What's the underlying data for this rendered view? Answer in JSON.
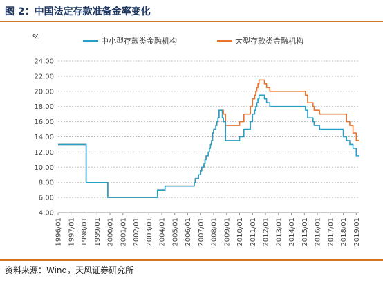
{
  "header": {
    "title": "图 2：中国法定存款准备金率变化"
  },
  "footer": {
    "source": "资料来源：Wind，天风证券研究所"
  },
  "colors": {
    "accent": "#d5761f",
    "series_small": "#26a0c8",
    "series_large": "#e8722c"
  },
  "chart_data": {
    "type": "line",
    "title": "",
    "xlabel": "",
    "ylabel": "%",
    "ylim": [
      4,
      24
    ],
    "xlim": [
      "1996-01",
      "2019-04"
    ],
    "grid": true,
    "legend_position": "top-right",
    "y_ticks": [
      "4.00",
      "6.00",
      "8.00",
      "10.00",
      "12.00",
      "14.00",
      "16.00",
      "18.00",
      "20.00",
      "22.00",
      "24.00"
    ],
    "x_ticks": [
      "1996/01",
      "1997/01",
      "1998/01",
      "1999/01",
      "2000/01",
      "2001/01",
      "2002/01",
      "2003/01",
      "2004/01",
      "2005/01",
      "2006/01",
      "2007/01",
      "2008/01",
      "2009/01",
      "2010/01",
      "2011/01",
      "2012/01",
      "2013/01",
      "2014/01",
      "2015/01",
      "2016/01",
      "2017/01",
      "2018/01",
      "2019/01"
    ],
    "series": [
      {
        "name": "中小型存款类金融机构",
        "color": "#26a0c8",
        "points": [
          [
            "1996-01",
            13
          ],
          [
            "1998-03",
            13
          ],
          [
            "1998-03",
            8
          ],
          [
            "1999-11",
            8
          ],
          [
            "1999-11",
            6
          ],
          [
            "2003-09",
            6
          ],
          [
            "2003-09",
            7
          ],
          [
            "2004-04",
            7
          ],
          [
            "2004-04",
            7.5
          ],
          [
            "2006-07",
            7.5
          ],
          [
            "2006-07",
            8
          ],
          [
            "2006-08",
            8
          ],
          [
            "2006-08",
            8.5
          ],
          [
            "2006-11",
            8.5
          ],
          [
            "2006-11",
            9
          ],
          [
            "2007-01",
            9
          ],
          [
            "2007-01",
            9.5
          ],
          [
            "2007-02",
            9.5
          ],
          [
            "2007-02",
            10
          ],
          [
            "2007-04",
            10
          ],
          [
            "2007-04",
            10.5
          ],
          [
            "2007-05",
            10.5
          ],
          [
            "2007-05",
            11
          ],
          [
            "2007-06",
            11
          ],
          [
            "2007-06",
            11.5
          ],
          [
            "2007-08",
            11.5
          ],
          [
            "2007-08",
            12
          ],
          [
            "2007-09",
            12
          ],
          [
            "2007-09",
            12.5
          ],
          [
            "2007-10",
            12.5
          ],
          [
            "2007-10",
            13
          ],
          [
            "2007-11",
            13
          ],
          [
            "2007-11",
            13.5
          ],
          [
            "2007-12",
            13.5
          ],
          [
            "2007-12",
            14.5
          ],
          [
            "2008-01",
            14.5
          ],
          [
            "2008-01",
            15
          ],
          [
            "2008-03",
            15
          ],
          [
            "2008-03",
            15.5
          ],
          [
            "2008-04",
            15.5
          ],
          [
            "2008-04",
            16
          ],
          [
            "2008-05",
            16
          ],
          [
            "2008-05",
            16.5
          ],
          [
            "2008-06",
            16.5
          ],
          [
            "2008-06",
            17.5
          ],
          [
            "2008-09",
            17.5
          ],
          [
            "2008-09",
            16.5
          ],
          [
            "2008-10",
            16.5
          ],
          [
            "2008-10",
            16
          ],
          [
            "2008-12",
            16
          ],
          [
            "2008-12",
            13.5
          ],
          [
            "2010-01",
            13.5
          ],
          [
            "2010-01",
            14
          ],
          [
            "2010-05",
            14
          ],
          [
            "2010-05",
            15
          ],
          [
            "2010-11",
            15
          ],
          [
            "2010-11",
            16
          ],
          [
            "2011-01",
            16
          ],
          [
            "2011-01",
            17
          ],
          [
            "2011-03",
            17
          ],
          [
            "2011-03",
            17.5
          ],
          [
            "2011-04",
            17.5
          ],
          [
            "2011-04",
            18
          ],
          [
            "2011-05",
            18
          ],
          [
            "2011-05",
            18.5
          ],
          [
            "2011-06",
            18.5
          ],
          [
            "2011-06",
            19
          ],
          [
            "2011-07",
            19
          ],
          [
            "2011-07",
            19.5
          ],
          [
            "2011-12",
            19.5
          ],
          [
            "2011-12",
            19
          ],
          [
            "2012-02",
            19
          ],
          [
            "2012-02",
            18.5
          ],
          [
            "2012-05",
            18.5
          ],
          [
            "2012-05",
            18
          ],
          [
            "2015-02",
            18
          ],
          [
            "2015-02",
            17.5
          ],
          [
            "2015-04",
            17.5
          ],
          [
            "2015-04",
            16.5
          ],
          [
            "2015-09",
            16.5
          ],
          [
            "2015-09",
            16
          ],
          [
            "2015-10",
            16
          ],
          [
            "2015-10",
            15.5
          ],
          [
            "2016-03",
            15.5
          ],
          [
            "2016-03",
            15
          ],
          [
            "2018-01",
            15
          ],
          [
            "2018-01",
            14
          ],
          [
            "2018-04",
            14
          ],
          [
            "2018-04",
            13.5
          ],
          [
            "2018-07",
            13.5
          ],
          [
            "2018-07",
            13
          ],
          [
            "2018-10",
            13
          ],
          [
            "2018-10",
            12.5
          ],
          [
            "2019-01",
            12.5
          ],
          [
            "2019-01",
            11.5
          ],
          [
            "2019-04",
            11.5
          ]
        ]
      },
      {
        "name": "大型存款类金融机构",
        "color": "#e8722c",
        "points": [
          [
            "1996-01",
            13
          ],
          [
            "1998-03",
            13
          ],
          [
            "1998-03",
            8
          ],
          [
            "1999-11",
            8
          ],
          [
            "1999-11",
            6
          ],
          [
            "2003-09",
            6
          ],
          [
            "2003-09",
            7
          ],
          [
            "2004-04",
            7
          ],
          [
            "2004-04",
            7.5
          ],
          [
            "2006-07",
            7.5
          ],
          [
            "2006-07",
            8
          ],
          [
            "2006-08",
            8
          ],
          [
            "2006-08",
            8.5
          ],
          [
            "2006-11",
            8.5
          ],
          [
            "2006-11",
            9
          ],
          [
            "2007-01",
            9
          ],
          [
            "2007-01",
            9.5
          ],
          [
            "2007-02",
            9.5
          ],
          [
            "2007-02",
            10
          ],
          [
            "2007-04",
            10
          ],
          [
            "2007-04",
            10.5
          ],
          [
            "2007-05",
            10.5
          ],
          [
            "2007-05",
            11
          ],
          [
            "2007-06",
            11
          ],
          [
            "2007-06",
            11.5
          ],
          [
            "2007-08",
            11.5
          ],
          [
            "2007-08",
            12
          ],
          [
            "2007-09",
            12
          ],
          [
            "2007-09",
            12.5
          ],
          [
            "2007-10",
            12.5
          ],
          [
            "2007-10",
            13
          ],
          [
            "2007-11",
            13
          ],
          [
            "2007-11",
            13.5
          ],
          [
            "2007-12",
            13.5
          ],
          [
            "2007-12",
            14.5
          ],
          [
            "2008-01",
            14.5
          ],
          [
            "2008-01",
            15
          ],
          [
            "2008-03",
            15
          ],
          [
            "2008-03",
            15.5
          ],
          [
            "2008-04",
            15.5
          ],
          [
            "2008-04",
            16
          ],
          [
            "2008-05",
            16
          ],
          [
            "2008-05",
            16.5
          ],
          [
            "2008-06",
            16.5
          ],
          [
            "2008-06",
            17.5
          ],
          [
            "2008-10",
            17.5
          ],
          [
            "2008-10",
            17
          ],
          [
            "2008-12",
            17
          ],
          [
            "2008-12",
            15.5
          ],
          [
            "2010-01",
            15.5
          ],
          [
            "2010-01",
            16
          ],
          [
            "2010-05",
            16
          ],
          [
            "2010-05",
            17
          ],
          [
            "2010-11",
            17
          ],
          [
            "2010-11",
            18
          ],
          [
            "2011-01",
            18
          ],
          [
            "2011-01",
            19
          ],
          [
            "2011-03",
            19
          ],
          [
            "2011-03",
            19.5
          ],
          [
            "2011-04",
            19.5
          ],
          [
            "2011-04",
            20
          ],
          [
            "2011-05",
            20
          ],
          [
            "2011-05",
            20.5
          ],
          [
            "2011-06",
            20.5
          ],
          [
            "2011-06",
            21
          ],
          [
            "2011-07",
            21
          ],
          [
            "2011-07",
            21.5
          ],
          [
            "2011-12",
            21.5
          ],
          [
            "2011-12",
            21
          ],
          [
            "2012-02",
            21
          ],
          [
            "2012-02",
            20.5
          ],
          [
            "2012-05",
            20.5
          ],
          [
            "2012-05",
            20
          ],
          [
            "2015-02",
            20
          ],
          [
            "2015-02",
            19.5
          ],
          [
            "2015-04",
            19.5
          ],
          [
            "2015-04",
            18.5
          ],
          [
            "2015-09",
            18.5
          ],
          [
            "2015-09",
            18
          ],
          [
            "2015-10",
            18
          ],
          [
            "2015-10",
            17.5
          ],
          [
            "2016-03",
            17.5
          ],
          [
            "2016-03",
            17
          ],
          [
            "2018-04",
            17
          ],
          [
            "2018-04",
            16
          ],
          [
            "2018-07",
            16
          ],
          [
            "2018-07",
            15.5
          ],
          [
            "2018-10",
            15.5
          ],
          [
            "2018-10",
            14.5
          ],
          [
            "2019-01",
            14.5
          ],
          [
            "2019-01",
            13.5
          ],
          [
            "2019-04",
            13.5
          ]
        ]
      }
    ]
  }
}
